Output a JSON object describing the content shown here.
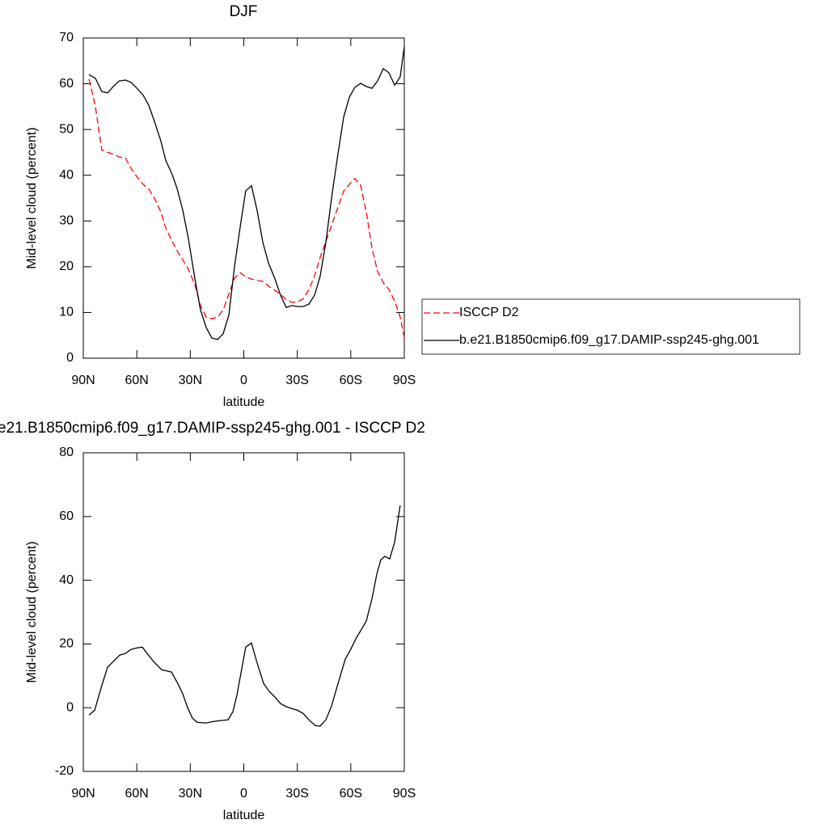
{
  "chart_data": [
    {
      "type": "line",
      "title": "DJF",
      "ylabel": "Mid-level cloud (percent)",
      "xlabel": "latitude",
      "x": [
        86.8,
        83.2,
        79.6,
        76.4,
        73.2,
        70,
        66.4,
        63.2,
        59.6,
        56.4,
        53.3,
        50.1,
        46.5,
        43.8,
        40.1,
        37.4,
        34.2,
        31.1,
        27.4,
        24.3,
        21.1,
        17.9,
        14.7,
        11.6,
        8.4,
        5.2,
        2,
        -1.1,
        -4.3,
        -7.5,
        -10.7,
        -13.8,
        -17.5,
        -20.6,
        -23.8,
        -27,
        -30.1,
        -33.3,
        -36.5,
        -39.7,
        -42.8,
        -46,
        -49.2,
        -52.8,
        -56,
        -59.2,
        -62.3,
        -65.5,
        -68.7,
        -71.9,
        -75,
        -78.2,
        -81.4,
        -84.6,
        -87.7,
        -90
      ],
      "series": [
        {
          "name": "ISCCP D2",
          "color": "#ff0000",
          "linestyle": "dashed",
          "values": [
            61,
            55,
            45.5,
            45,
            44.6,
            44,
            43.8,
            41.5,
            39.5,
            38,
            37,
            35,
            32,
            28.5,
            25.5,
            23.5,
            21.5,
            19.5,
            16,
            11.5,
            9,
            8.6,
            9,
            10.5,
            14,
            17.5,
            18.7,
            17.8,
            17.3,
            17,
            16.8,
            15.8,
            14.8,
            14,
            12.8,
            12.2,
            12.3,
            13,
            15,
            18,
            22,
            25.5,
            29,
            33,
            36.5,
            38,
            39.3,
            37.8,
            32,
            24,
            19,
            16.5,
            15,
            12.5,
            9,
            4.5
          ]
        },
        {
          "name": "b.e21.B1850cmip6.f09_g17.DAMIP-ssp245-ghg.001",
          "color": "#000000",
          "linestyle": "solid",
          "values": [
            62,
            61.2,
            58.3,
            58,
            59.4,
            60.6,
            60.8,
            60.3,
            58.9,
            57.5,
            55.3,
            51.8,
            47.5,
            43.3,
            40.1,
            37.1,
            32.3,
            26.2,
            17.3,
            10.6,
            6.7,
            4.4,
            4.1,
            5.3,
            9.4,
            20,
            28.8,
            36.6,
            37.7,
            32.3,
            25.3,
            20.9,
            17.3,
            13.8,
            11.1,
            11.5,
            11.3,
            11.3,
            11.8,
            13.8,
            17.9,
            25.3,
            35,
            44.7,
            52.7,
            57.1,
            59.2,
            60.1,
            59.4,
            59,
            60.6,
            63.3,
            62.4,
            59.7,
            61.5,
            68.1
          ]
        }
      ],
      "xlim": [
        90,
        -90
      ],
      "xticks": [
        {
          "value": 90,
          "label": "90N"
        },
        {
          "value": 60,
          "label": "60N"
        },
        {
          "value": 30,
          "label": "30N"
        },
        0,
        {
          "value": -30,
          "label": "30S"
        },
        {
          "value": -60,
          "label": "60S"
        },
        {
          "value": -90,
          "label": "90S"
        }
      ],
      "ylim": [
        0,
        70
      ],
      "yticks": [
        0,
        10,
        20,
        30,
        40,
        50,
        60,
        70
      ],
      "legend": "right"
    },
    {
      "type": "line",
      "title": "e21.B1850cmip6.f09_g17.DAMIP-ssp245-ghg.001 - ISCCP D2",
      "ylabel": "Mid-level cloud (percent)",
      "xlabel": "latitude",
      "x": [
        86.8,
        83.6,
        80,
        76.4,
        73.2,
        69.6,
        66.4,
        63.2,
        59.6,
        56.9,
        54.2,
        50.6,
        46,
        40.6,
        37,
        34.2,
        31.5,
        28.8,
        26.1,
        21.1,
        16.6,
        8.8,
        6.1,
        3.9,
        1.6,
        -1.1,
        -4.3,
        -7.5,
        -11.1,
        -14.3,
        -17.5,
        -20.6,
        -23.8,
        -27,
        -30.1,
        -33.3,
        -36.5,
        -40.1,
        -42.8,
        -46,
        -49.2,
        -52.8,
        -56.9,
        -60.1,
        -63.2,
        -66,
        -68.7,
        -71.9,
        -74.6,
        -76.8,
        -79.1,
        -81.8,
        -84.6,
        -87.7
      ],
      "series": [
        {
          "color": "#000000",
          "linestyle": "solid",
          "values": [
            -2.3,
            -0.8,
            6.3,
            12.7,
            14.5,
            16.5,
            17,
            18.3,
            18.8,
            19,
            17,
            14.5,
            11.9,
            11.2,
            7.6,
            4.3,
            0,
            -3.3,
            -4.6,
            -4.8,
            -4.3,
            -3.8,
            -1.3,
            3.8,
            10.9,
            19,
            20.3,
            14,
            7.6,
            5.1,
            3.3,
            1.3,
            0.3,
            -0.3,
            -0.8,
            -1.8,
            -3.8,
            -5.6,
            -5.8,
            -3.8,
            0.5,
            7.6,
            15.2,
            18.5,
            22,
            24.6,
            27.2,
            34.3,
            41.9,
            46.4,
            47.5,
            46.7,
            52,
            63.5
          ]
        }
      ],
      "xlim": [
        90,
        -90
      ],
      "xticks": [
        {
          "value": 90,
          "label": "90N"
        },
        {
          "value": 60,
          "label": "60N"
        },
        {
          "value": 30,
          "label": "30N"
        },
        0,
        {
          "value": -30,
          "label": "30S"
        },
        {
          "value": -60,
          "label": "60S"
        },
        {
          "value": -90,
          "label": "90S"
        }
      ],
      "ylim": [
        -20,
        80
      ],
      "yticks": [
        -20,
        0,
        20,
        40,
        60,
        80
      ]
    }
  ]
}
